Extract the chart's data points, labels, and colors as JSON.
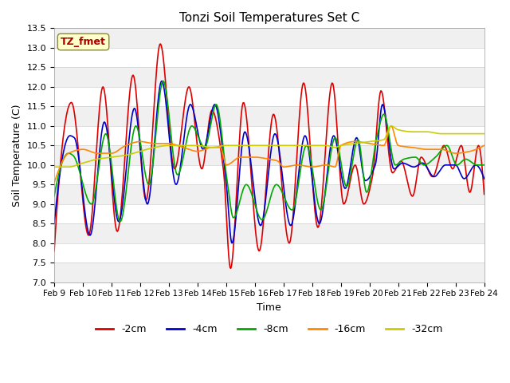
{
  "title": "Tonzi Soil Temperatures Set C",
  "xlabel": "Time",
  "ylabel": "Soil Temperature (C)",
  "ylim": [
    7.0,
    13.5
  ],
  "yticks": [
    7.0,
    7.5,
    8.0,
    8.5,
    9.0,
    9.5,
    10.0,
    10.5,
    11.0,
    11.5,
    12.0,
    12.5,
    13.0,
    13.5
  ],
  "xtick_labels": [
    "Feb 9",
    "Feb 10",
    "Feb 11",
    "Feb 12",
    "Feb 13",
    "Feb 14",
    "Feb 15",
    "Feb 16",
    "Feb 17",
    "Feb 18",
    "Feb 19",
    "Feb 20",
    "Feb 21",
    "Feb 22",
    "Feb 23",
    "Feb 24"
  ],
  "bg_color": "#ffffff",
  "series_colors": [
    "#dd0000",
    "#0000cc",
    "#00aa00",
    "#ff8800",
    "#cccc00"
  ],
  "series_labels": [
    "-2cm",
    "-4cm",
    "-8cm",
    "-16cm",
    "-32cm"
  ],
  "annotation_text": "TZ_fmet",
  "annotation_color": "#aa0000",
  "annotation_bg": "#ffffcc",
  "annotation_edge": "#888844",
  "grid_color": "#e0e0e0",
  "alt_band_color": "#f0f0f0",
  "n_points": 600
}
